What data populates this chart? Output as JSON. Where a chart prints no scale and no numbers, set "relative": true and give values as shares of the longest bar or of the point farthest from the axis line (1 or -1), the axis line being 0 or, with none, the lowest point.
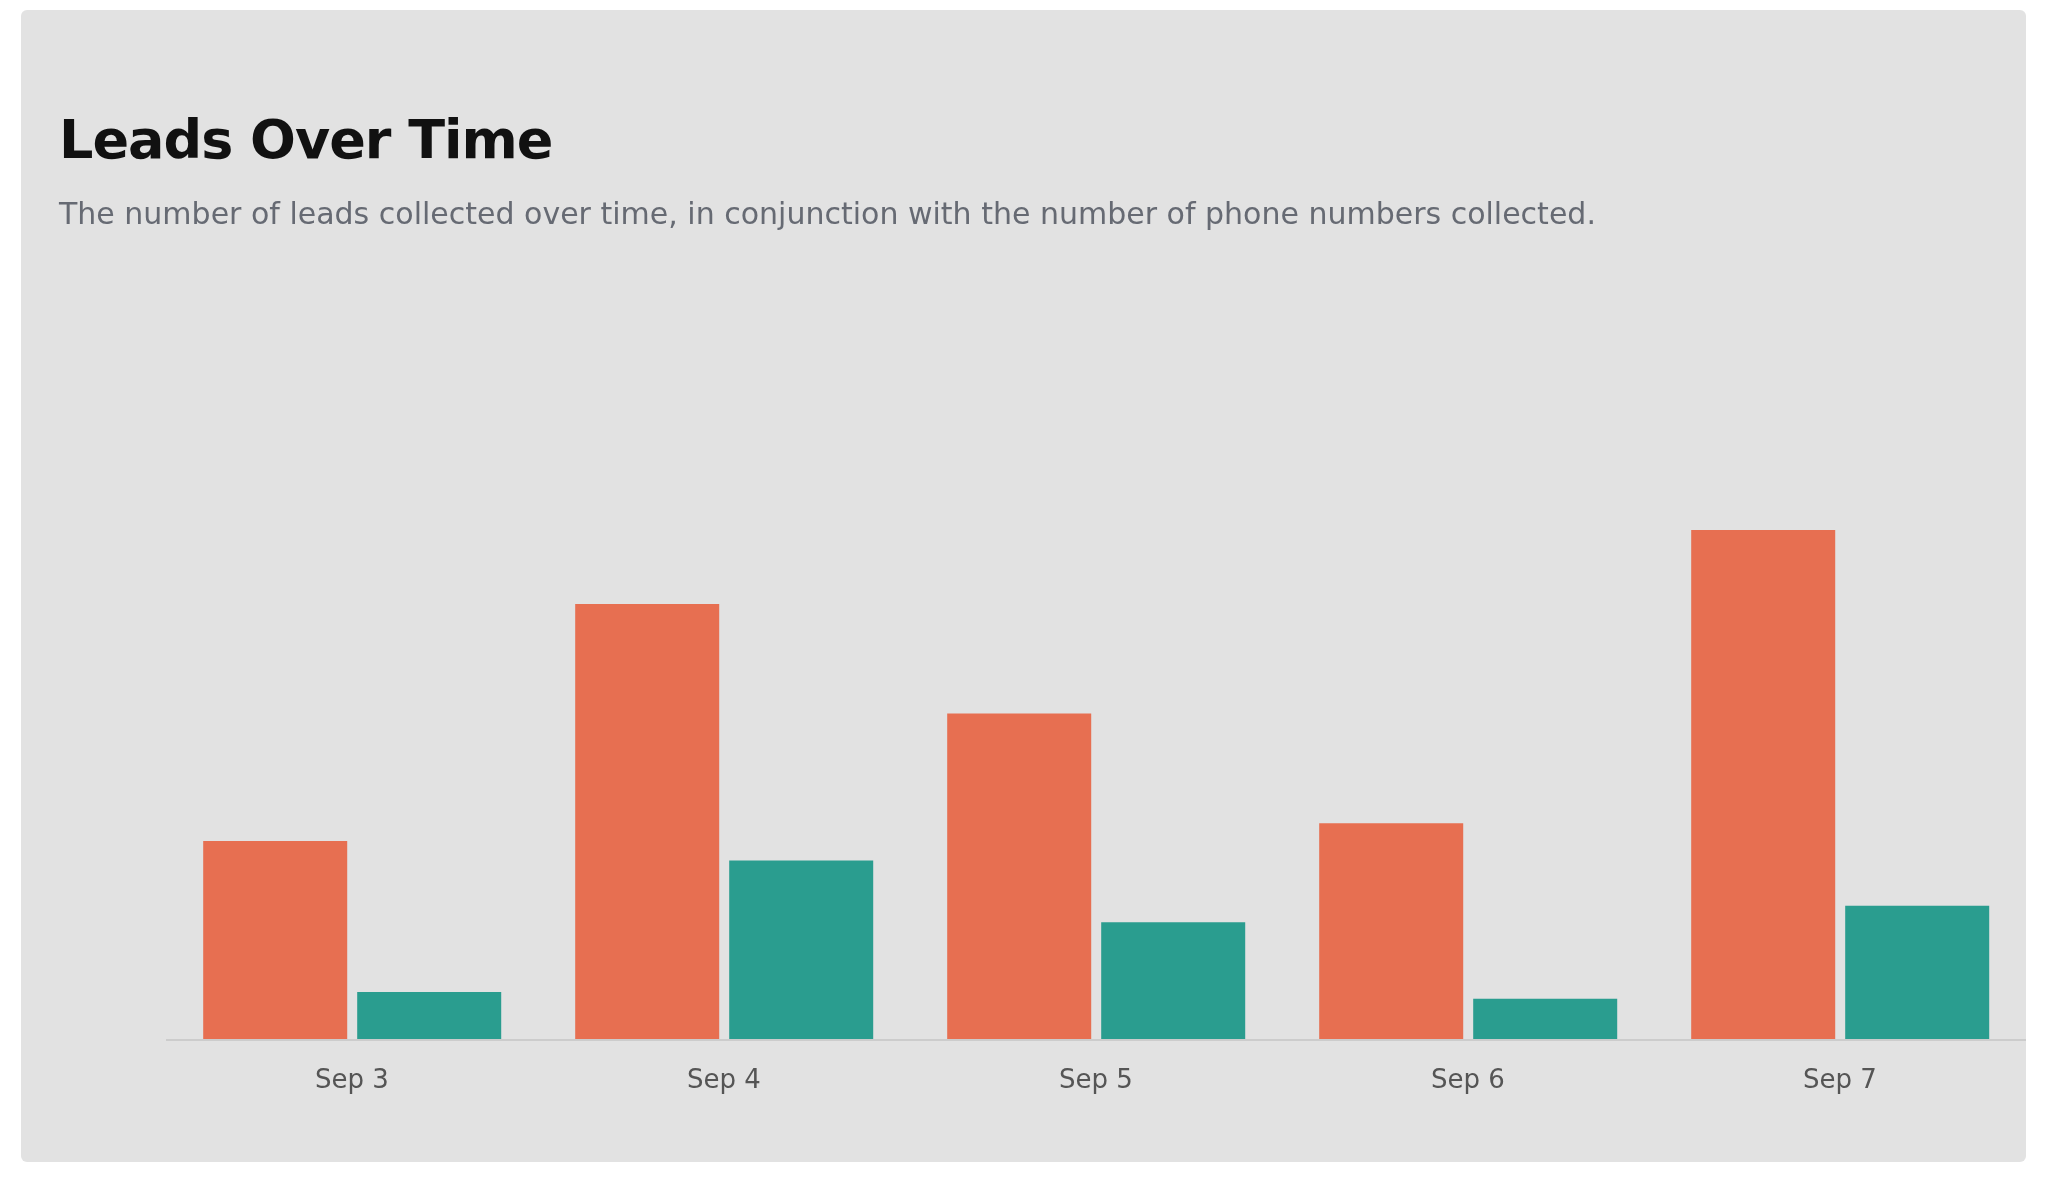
{
  "chart_data": {
    "type": "bar",
    "title": "Leads Over Time",
    "subtitle": "The number of leads collected over time, in conjunction with the number of phone numbers collected.",
    "categories": [
      "Sep 3",
      "Sep 4",
      "Sep 5",
      "Sep 6",
      "Sep 7"
    ],
    "relative": true,
    "series": [
      {
        "color": "#e76f51",
        "values": [
          0.39,
          0.855,
          0.64,
          0.425,
          1
        ]
      },
      {
        "color": "#2a9d8f",
        "values": [
          0.094,
          0.352,
          0.231,
          0.081,
          0.263
        ]
      }
    ]
  }
}
